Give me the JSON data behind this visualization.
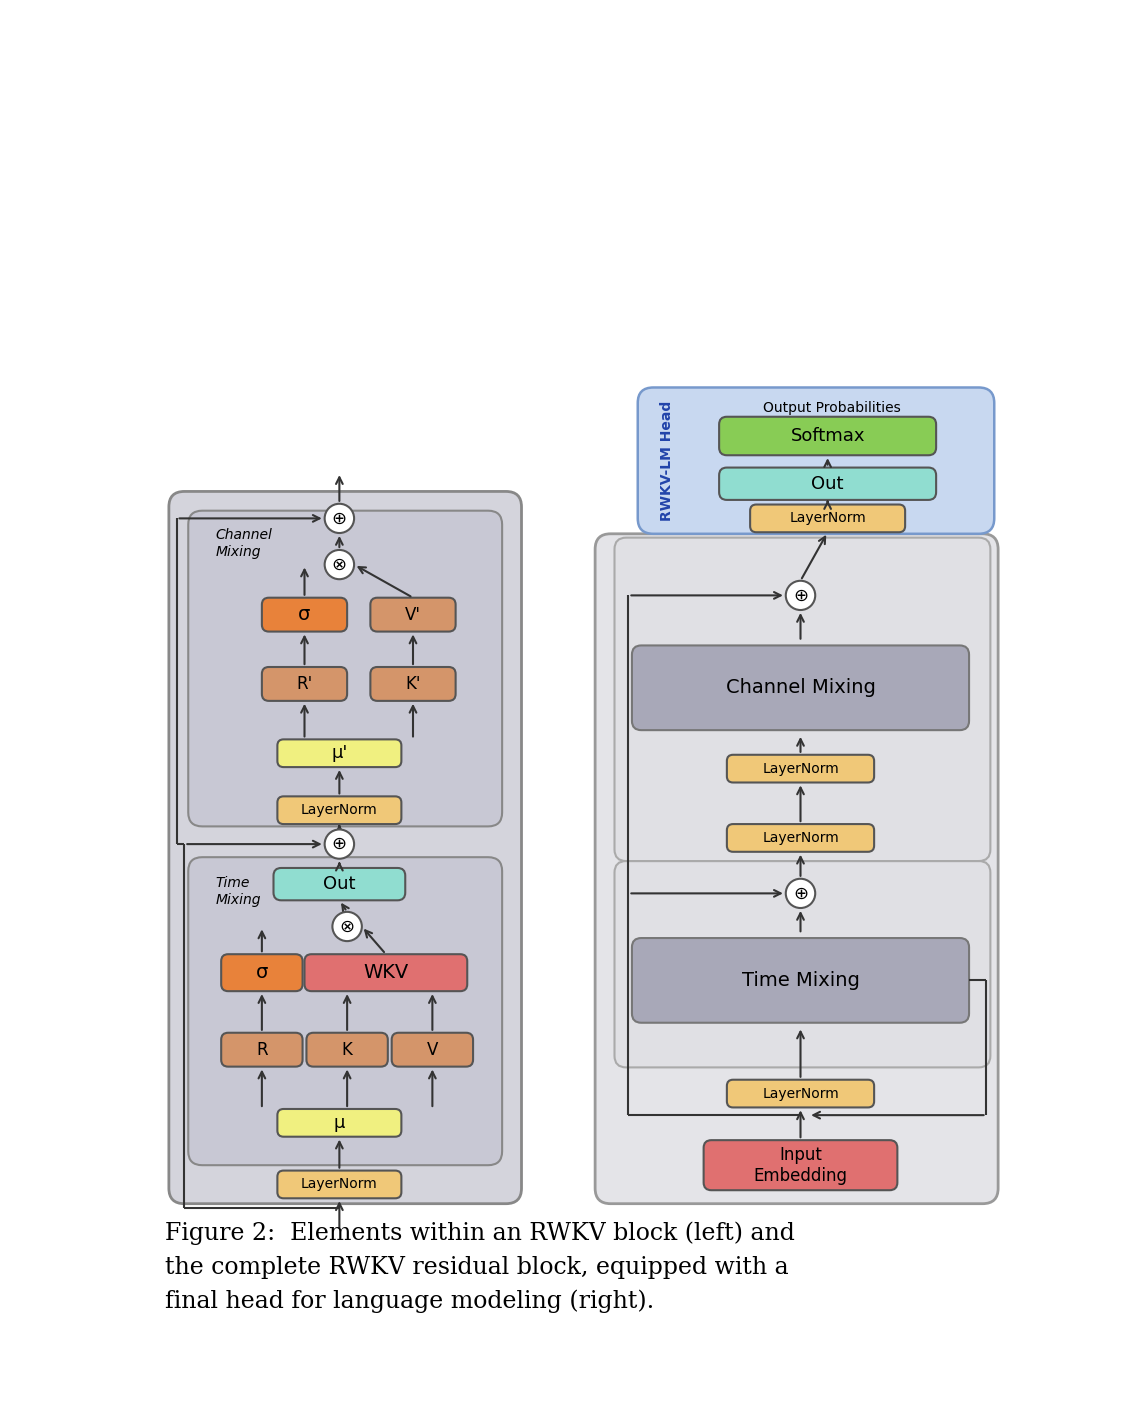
{
  "fig_width": 11.34,
  "fig_height": 14.26,
  "colors": {
    "orange_dark": "#E8823A",
    "orange_light": "#D4956A",
    "red_pink": "#E07070",
    "yellow_light": "#F0F080",
    "cyan_light": "#90DDD0",
    "green_light": "#88CC55",
    "peach_layernorm": "#F0C878",
    "gray_dark_box": "#A8A8B8",
    "blue_box_bg": "#C8D8F0",
    "light_gray_bg": "#E4E4E8",
    "medium_gray_bg": "#C8C8D4",
    "outer_gray_left": "#D4D4DC",
    "white": "#FFFFFF"
  },
  "caption_line1": "Figure 2:  Elements within an RWKV block (left) and",
  "caption_line2": "the complete RWKV residual block, equipped with a",
  "caption_line3": "final head for language modeling (right).",
  "caption_fontsize": 17,
  "lm_head_label": "RWKV-LM Head",
  "output_prob_label": "Output Probabilities"
}
